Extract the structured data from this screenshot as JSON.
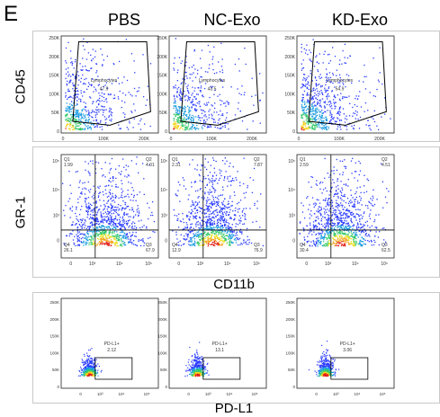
{
  "panel_letter": "E",
  "columns": [
    "PBS",
    "NC-Exo",
    "KD-Exo"
  ],
  "rows": [
    {
      "ylabel": "CD45",
      "xlabel": ""
    },
    {
      "ylabel": "GR-1",
      "xlabel": "CD11b"
    },
    {
      "ylabel": "",
      "xlabel": "PD-L1"
    }
  ],
  "chart_data": [
    {
      "type": "scatter",
      "row": 0,
      "description_of_axes": "FSC-like linear axes",
      "x_ticks": [
        "0",
        "100K",
        "200K"
      ],
      "y_ticks": [
        "0",
        "50K",
        "100K",
        "150K",
        "200K",
        "250K"
      ],
      "gate_label": "Lymphocytes",
      "values": [
        {
          "column": "PBS",
          "value": "47.9"
        },
        {
          "column": "NC-Exo",
          "value": "43.5"
        },
        {
          "column": "KD-Exo",
          "value": "54.9"
        }
      ]
    },
    {
      "type": "scatter",
      "row": 1,
      "x_ticks": [
        "0",
        "10³",
        "10⁴",
        "10⁵"
      ],
      "y_ticks": [
        "0",
        "10³",
        "10⁴",
        "10⁵"
      ],
      "quadrant_labels": [
        "Q1",
        "Q2",
        "Q3",
        "Q4"
      ],
      "values": [
        {
          "column": "PBS",
          "Q1": "1.99",
          "Q2": "4.01",
          "Q3": "67.9",
          "Q4": "26.1"
        },
        {
          "column": "NC-Exo",
          "Q1": "2.31",
          "Q2": "7.87",
          "Q3": "76.9",
          "Q4": "12.9"
        },
        {
          "column": "KD-Exo",
          "Q1": "2.59",
          "Q2": "4.51",
          "Q3": "62.5",
          "Q4": "30.4"
        }
      ]
    },
    {
      "type": "scatter",
      "row": 2,
      "x_ticks": [
        "0",
        "10³",
        "10⁴",
        "10⁵"
      ],
      "y_ticks": [
        "0",
        "50K",
        "100K",
        "150K",
        "200K",
        "250K"
      ],
      "gate_label": "PD-L1+",
      "values": [
        {
          "column": "PBS",
          "value": "2.12"
        },
        {
          "column": "NC-Exo",
          "value": "13.1"
        },
        {
          "column": "KD-Exo",
          "value": "3.06"
        }
      ]
    }
  ]
}
